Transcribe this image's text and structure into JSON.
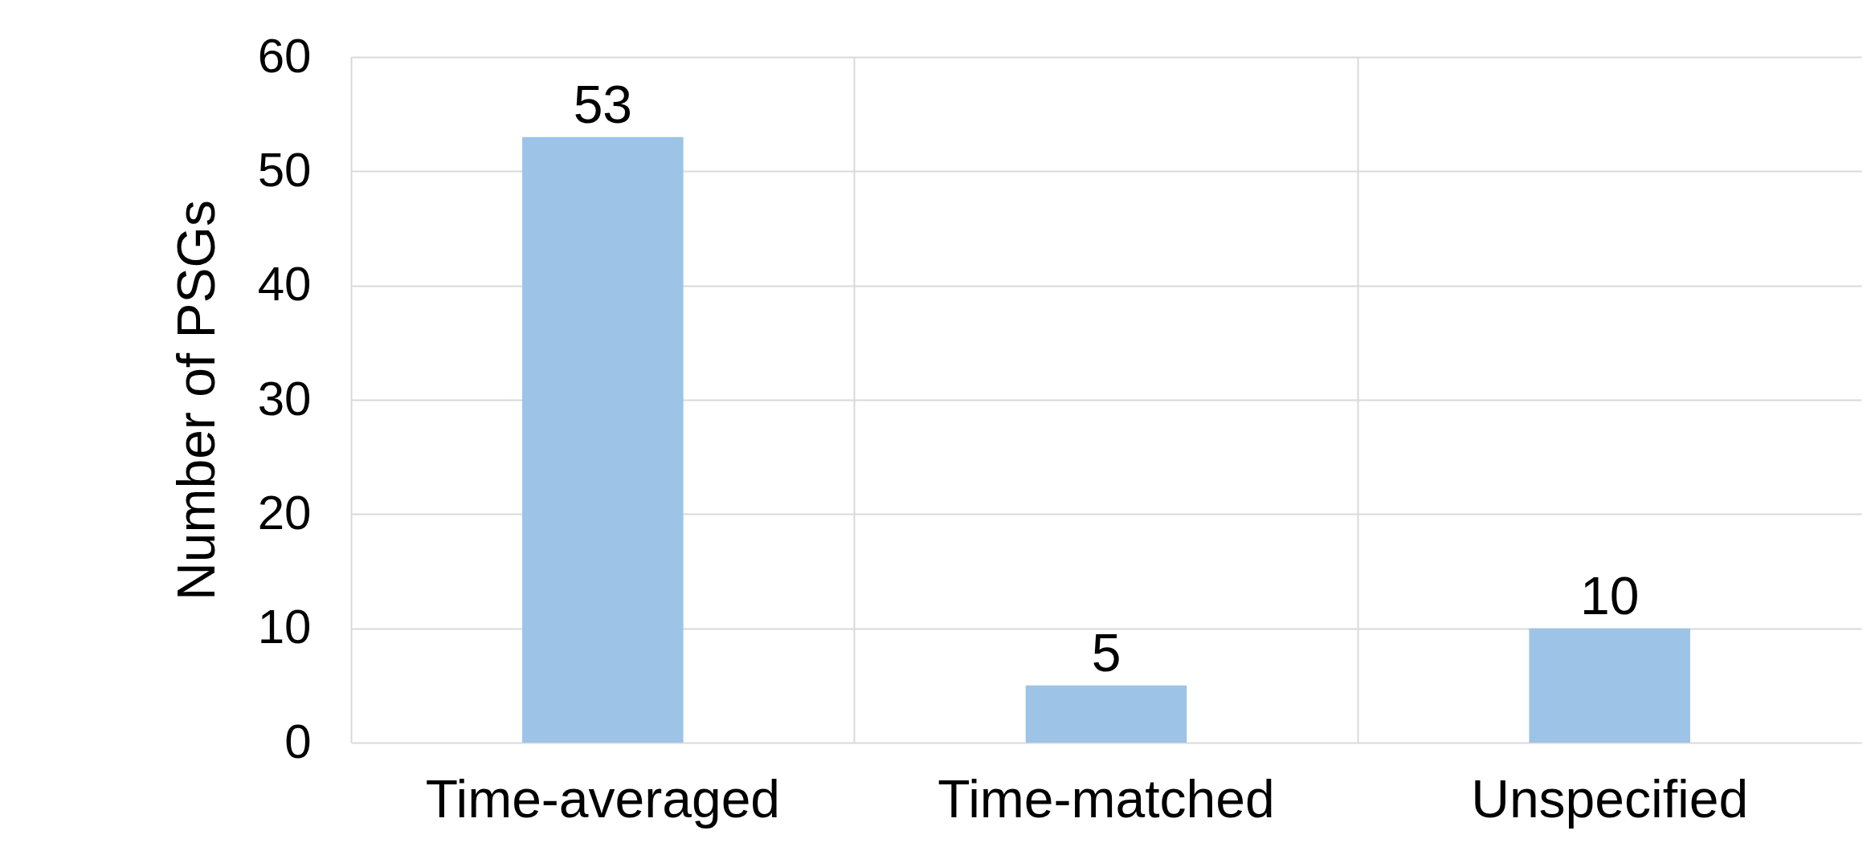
{
  "chart_data": {
    "type": "bar",
    "ylabel": "Number of PSGs",
    "categories": [
      "Time-averaged",
      "Time-matched",
      "Unspecified"
    ],
    "values": [
      53,
      5,
      10
    ],
    "color": "#9dc3e6",
    "ylim": [
      0,
      60
    ],
    "yticks": [
      0,
      10,
      20,
      30,
      40,
      50,
      60
    ],
    "grid": true,
    "data_labels": true
  }
}
